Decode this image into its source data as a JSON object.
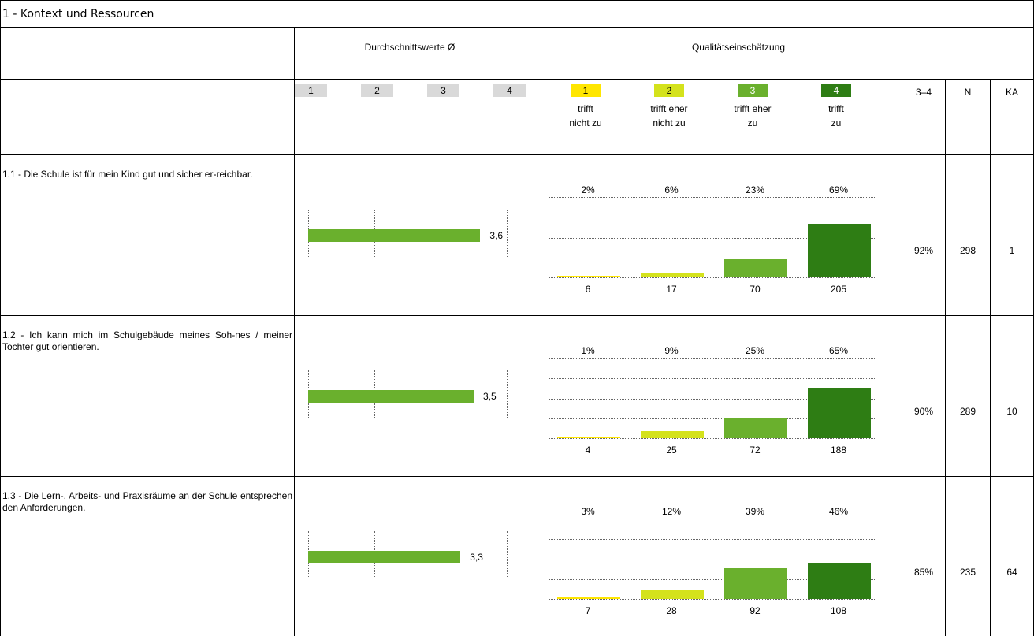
{
  "section_title": "1 - Kontext und Ressourcen",
  "headers": {
    "avg": "Durchschnittswerte Ø",
    "quality": "Qualitätseinschätzung",
    "col_34": "3–4",
    "col_n": "N",
    "col_ka": "KA"
  },
  "avg_scale": [
    "1",
    "2",
    "3",
    "4"
  ],
  "quality_scale": [
    {
      "num": "1",
      "line1": "trifft",
      "line2": "nicht zu",
      "color": "#ffe600"
    },
    {
      "num": "2",
      "line1": "trifft eher",
      "line2": "nicht zu",
      "color": "#d4e21c"
    },
    {
      "num": "3",
      "line1": "trifft eher",
      "line2": "zu",
      "color": "#6ab02d"
    },
    {
      "num": "4",
      "line1": "trifft",
      "line2": "zu",
      "color": "#2e7d14"
    }
  ],
  "colors": {
    "avg_bar": "#6ab02d",
    "scale_box": "#d9d9d9"
  },
  "rows": [
    {
      "question": "1.1 - Die Schule ist für mein Kind gut und sicher er-reichbar.",
      "avg": 3.6,
      "avg_label": "3,6",
      "percents": [
        "2%",
        "6%",
        "23%",
        "69%"
      ],
      "percent_values": [
        2,
        6,
        23,
        69
      ],
      "counts": [
        "6",
        "17",
        "70",
        "205"
      ],
      "share_34": "92%",
      "n": "298",
      "ka": "1"
    },
    {
      "question": "1.2 - Ich kann mich im Schulgebäude meines Soh-nes / meiner Tochter gut orientieren.",
      "avg": 3.5,
      "avg_label": "3,5",
      "percents": [
        "1%",
        "9%",
        "25%",
        "65%"
      ],
      "percent_values": [
        1,
        9,
        25,
        65
      ],
      "counts": [
        "4",
        "25",
        "72",
        "188"
      ],
      "share_34": "90%",
      "n": "289",
      "ka": "10"
    },
    {
      "question": "1.3 - Die Lern-, Arbeits- und Praxisräume an der Schule entsprechen den Anforderungen.",
      "avg": 3.3,
      "avg_label": "3,3",
      "percents": [
        "3%",
        "12%",
        "39%",
        "46%"
      ],
      "percent_values": [
        3,
        12,
        39,
        46
      ],
      "counts": [
        "7",
        "28",
        "92",
        "108"
      ],
      "share_34": "85%",
      "n": "235",
      "ka": "64"
    }
  ]
}
